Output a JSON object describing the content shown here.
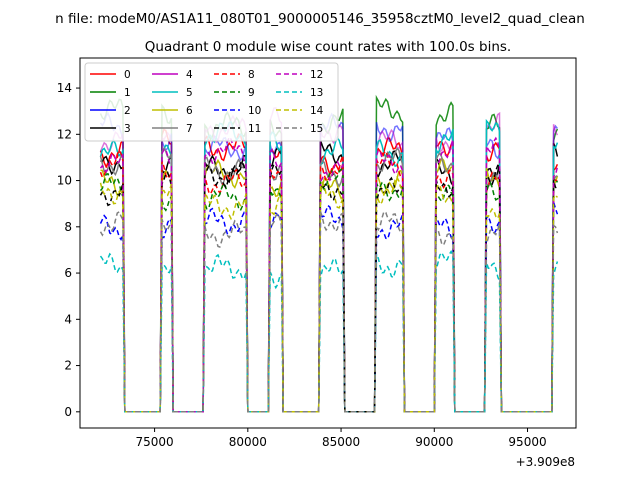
{
  "chart_data": {
    "type": "line",
    "suptitle": "n file: modeM0/AS1A11_080T01_9000005146_35958cztM0_level2_quad_clean",
    "title": "Quadrant 0 module wise count rates with 100.0s bins.",
    "xlabel": "",
    "ylabel": "",
    "x_offset_label": "+3.909e8",
    "xlim": [
      71000,
      97600
    ],
    "ylim": [
      -0.7,
      15.3
    ],
    "xticks": [
      75000,
      80000,
      85000,
      90000,
      95000
    ],
    "xtick_labels": [
      "75000",
      "80000",
      "85000",
      "90000",
      "95000"
    ],
    "yticks": [
      0,
      2,
      4,
      6,
      8,
      10,
      12,
      14
    ],
    "ytick_labels": [
      "0",
      "2",
      "4",
      "6",
      "8",
      "10",
      "12",
      "14"
    ],
    "legend_position": "upper-left",
    "on_intervals": [
      [
        72100,
        73300
      ],
      [
        75400,
        75900
      ],
      [
        77700,
        79900
      ],
      [
        81200,
        81800
      ],
      [
        83900,
        85100
      ],
      [
        86900,
        88300
      ],
      [
        90100,
        91000
      ],
      [
        92800,
        93500
      ],
      [
        96400,
        96600
      ]
    ],
    "series": [
      {
        "name": "0",
        "color": "#ff0000",
        "dash": "solid",
        "level": 11.2
      },
      {
        "name": "1",
        "color": "#008000",
        "dash": "solid",
        "level": 12.6
      },
      {
        "name": "2",
        "color": "#0000ff",
        "dash": "solid",
        "level": 11.9
      },
      {
        "name": "3",
        "color": "#000000",
        "dash": "solid",
        "level": 10.8
      },
      {
        "name": "4",
        "color": "#bf00bf",
        "dash": "solid",
        "level": 12.1
      },
      {
        "name": "5",
        "color": "#00bfbf",
        "dash": "solid",
        "level": 11.6
      },
      {
        "name": "6",
        "color": "#bfbf00",
        "dash": "solid",
        "level": 10.0
      },
      {
        "name": "7",
        "color": "#808080",
        "dash": "solid",
        "level": 10.5
      },
      {
        "name": "8",
        "color": "#ff0000",
        "dash": "dashed",
        "level": 10.3
      },
      {
        "name": "9",
        "color": "#008000",
        "dash": "dashed",
        "level": 9.6
      },
      {
        "name": "10",
        "color": "#0000ff",
        "dash": "dashed",
        "level": 8.2
      },
      {
        "name": "11",
        "color": "#000000",
        "dash": "dashed",
        "level": 9.9
      },
      {
        "name": "12",
        "color": "#bf00bf",
        "dash": "dashed",
        "level": 10.9
      },
      {
        "name": "13",
        "color": "#00bfbf",
        "dash": "dashed",
        "level": 6.2
      },
      {
        "name": "14",
        "color": "#bfbf00",
        "dash": "dashed",
        "level": 9.2
      },
      {
        "name": "15",
        "color": "#808080",
        "dash": "dashed",
        "level": 8.0
      }
    ]
  }
}
